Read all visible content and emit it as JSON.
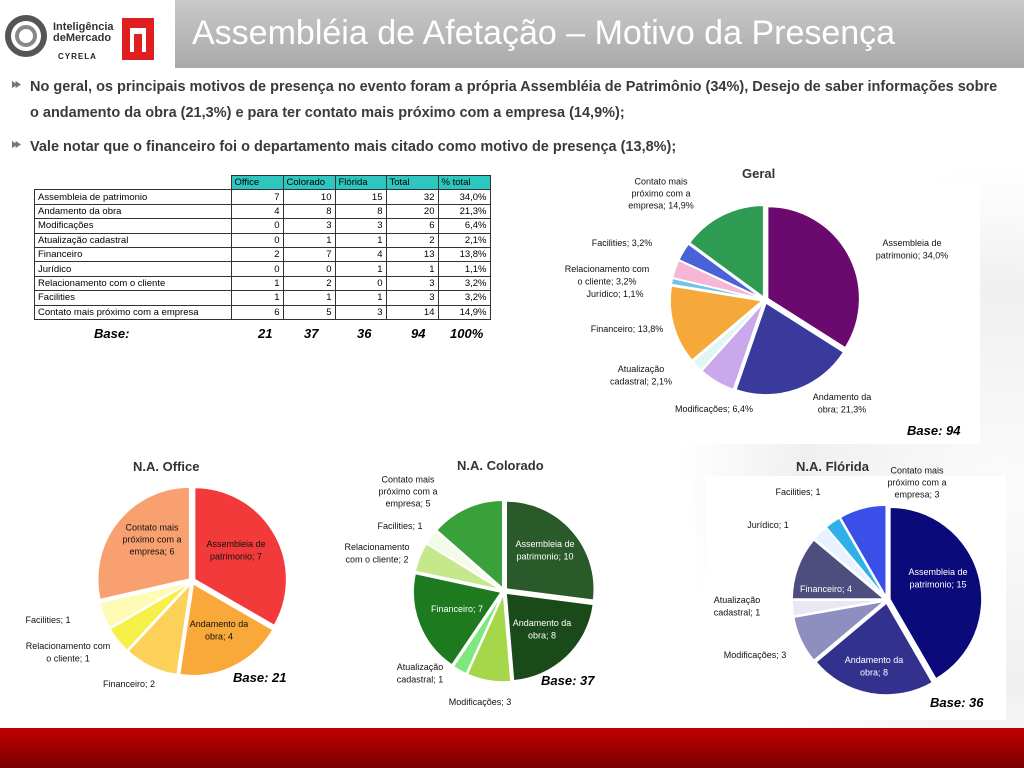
{
  "header": {
    "title": "Assembléia de Afetação – Motivo da Presença",
    "logo_line1": "Inteligência",
    "logo_line2": "deMercado",
    "logo_line3": "CYRELA"
  },
  "bullets": [
    "No geral, os principais motivos de presença no evento foram a própria Assembléia de Patrimônio (34%), Desejo de saber informações sobre o andamento da obra (21,3%) e para ter contato mais próximo com a empresa (14,9%);",
    "Vale notar que o financeiro foi o departamento mais citado como motivo de presença (13,8%);"
  ],
  "table": {
    "headers": [
      "",
      "Office",
      "Colorado",
      "Flórida",
      "Total",
      "% total"
    ],
    "rows": [
      [
        "Assembleia de patrimonio",
        "7",
        "10",
        "15",
        "32",
        "34,0%"
      ],
      [
        "Andamento da obra",
        "4",
        "8",
        "8",
        "20",
        "21,3%"
      ],
      [
        "Modificações",
        "0",
        "3",
        "3",
        "6",
        "6,4%"
      ],
      [
        "Atualização cadastral",
        "0",
        "1",
        "1",
        "2",
        "2,1%"
      ],
      [
        "Financeiro",
        "2",
        "7",
        "4",
        "13",
        "13,8%"
      ],
      [
        "Jurídico",
        "0",
        "0",
        "1",
        "1",
        "1,1%"
      ],
      [
        "Relacionamento com o cliente",
        "1",
        "2",
        "0",
        "3",
        "3,2%"
      ],
      [
        "Facilities",
        "1",
        "1",
        "1",
        "3",
        "3,2%"
      ],
      [
        "Contato mais próximo com a empresa",
        "6",
        "5",
        "3",
        "14",
        "14,9%"
      ]
    ],
    "base_label": "Base:",
    "base_values": [
      "21",
      "37",
      "36",
      "94",
      "100%"
    ]
  },
  "chart_data": [
    {
      "type": "pie",
      "title": "Geral",
      "base": "Base: 94",
      "slices": [
        {
          "label": "Assembleia de patrimonio; 34,0%",
          "value": 34.0,
          "color": "#6b0a6e"
        },
        {
          "label": "Andamento da obra; 21,3%",
          "value": 21.3,
          "color": "#3a3a9c"
        },
        {
          "label": "Modificações; 6,4%",
          "value": 6.4,
          "color": "#c9a8ec"
        },
        {
          "label": "Atualização cadastral; 2,1%",
          "value": 2.1,
          "color": "#dff6f4"
        },
        {
          "label": "Financeiro; 13,8%",
          "value": 13.8,
          "color": "#f5a93b"
        },
        {
          "label": "Jurídico; 1,1%",
          "value": 1.1,
          "color": "#6fc3e6"
        },
        {
          "label": "Relacionamento com o cliente; 3,2%",
          "value": 3.2,
          "color": "#f6b6d8"
        },
        {
          "label": "Facilities; 3,2%",
          "value": 3.2,
          "color": "#4a62d8"
        },
        {
          "label": "Contato mais próximo com a empresa; 14,9%",
          "value": 14.9,
          "color": "#2e9a52"
        }
      ]
    },
    {
      "type": "pie",
      "title": "N.A. Office",
      "base": "Base: 21",
      "slices": [
        {
          "label": "Assembleia de patrimonio; 7",
          "value": 7,
          "color": "#f23a3a"
        },
        {
          "label": "Andamento da obra; 4",
          "value": 4,
          "color": "#f9a83a"
        },
        {
          "label": "Financeiro; 2",
          "value": 2,
          "color": "#fbd15a"
        },
        {
          "label": "Relacionamento com o cliente; 1",
          "value": 1,
          "color": "#f7f04a"
        },
        {
          "label": "Facilities; 1",
          "value": 1,
          "color": "#fdfbb5"
        },
        {
          "label": "Contato mais próximo com a empresa; 6",
          "value": 6,
          "color": "#f8a070"
        }
      ]
    },
    {
      "type": "pie",
      "title": "N.A. Colorado",
      "base": "Base: 37",
      "slices": [
        {
          "label": "Assembleia de patrimonio; 10",
          "value": 10,
          "color": "#2a5a2a"
        },
        {
          "label": "Andamento da obra; 8",
          "value": 8,
          "color": "#1a4a1a"
        },
        {
          "label": "Modificações; 3",
          "value": 3,
          "color": "#a6d64a"
        },
        {
          "label": "Atualização cadastral; 1",
          "value": 1,
          "color": "#7ee87e"
        },
        {
          "label": "Financeiro; 7",
          "value": 7,
          "color": "#1e7a1e"
        },
        {
          "label": "Relacionamento com o cliente; 2",
          "value": 2,
          "color": "#c6e88c"
        },
        {
          "label": "Facilities; 1",
          "value": 1,
          "color": "#f2fbe8"
        },
        {
          "label": "Contato mais próximo com a empresa; 5",
          "value": 5,
          "color": "#3aa03a"
        }
      ]
    },
    {
      "type": "pie",
      "title": "N.A. Flórida",
      "base": "Base: 36",
      "slices": [
        {
          "label": "Assembleia de patrimonio; 15",
          "value": 15,
          "color": "#0a0a7a"
        },
        {
          "label": "Andamento da obra; 8",
          "value": 8,
          "color": "#32328e"
        },
        {
          "label": "Modificações; 3",
          "value": 3,
          "color": "#8e8ec0"
        },
        {
          "label": "Atualização cadastral; 1",
          "value": 1,
          "color": "#e8e8f4"
        },
        {
          "label": "Financeiro; 4",
          "value": 4,
          "color": "#4e4e7e"
        },
        {
          "label": "Jurídico; 1",
          "value": 1,
          "color": "#e8f2ff"
        },
        {
          "label": "Facilities; 1",
          "value": 1,
          "color": "#2fb0e8"
        },
        {
          "label": "Contato mais próximo com a empresa; 3",
          "value": 3,
          "color": "#3a4ee8"
        }
      ]
    }
  ]
}
